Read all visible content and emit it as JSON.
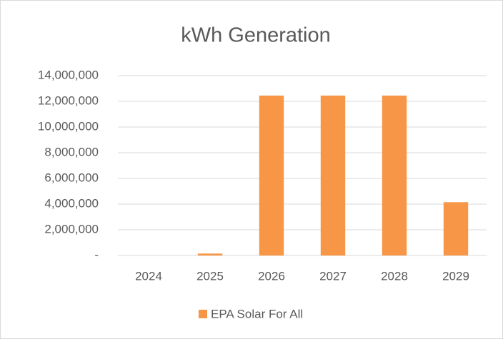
{
  "chart_data": {
    "type": "bar",
    "title": "kWh Generation",
    "categories": [
      "2024",
      "2025",
      "2026",
      "2027",
      "2028",
      "2029"
    ],
    "series": [
      {
        "name": "EPA Solar For All",
        "color": "#f79646",
        "values": [
          0,
          150000,
          12450000,
          12450000,
          12450000,
          4150000
        ]
      }
    ],
    "ylim": [
      0,
      14000000
    ],
    "yticks": [
      {
        "value": 0,
        "label": "-"
      },
      {
        "value": 2000000,
        "label": "2,000,000"
      },
      {
        "value": 4000000,
        "label": "4,000,000"
      },
      {
        "value": 6000000,
        "label": "6,000,000"
      },
      {
        "value": 8000000,
        "label": "8,000,000"
      },
      {
        "value": 10000000,
        "label": "10,000,000"
      },
      {
        "value": 12000000,
        "label": "12,000,000"
      },
      {
        "value": 14000000,
        "label": "14,000,000"
      }
    ],
    "grid": true,
    "legend": "bottom"
  }
}
